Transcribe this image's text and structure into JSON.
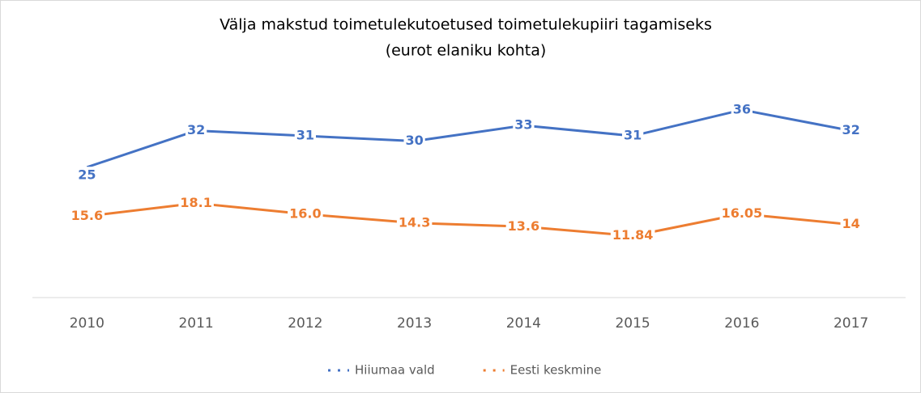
{
  "chart_data": {
    "type": "line",
    "title": "Välja makstud toimetulekutoetused toimetulekupiiri tagamiseks",
    "subtitle": "(eurot elaniku kohta)",
    "categories": [
      "2010",
      "2011",
      "2012",
      "2013",
      "2014",
      "2015",
      "2016",
      "2017"
    ],
    "series": [
      {
        "name": "Hiiumaa vald",
        "color": "#4472c4",
        "values": [
          25,
          32,
          31,
          30,
          33,
          31,
          36,
          32
        ]
      },
      {
        "name": "Eesti keskmine",
        "color": "#ed7d31",
        "values": [
          15.6,
          18.1,
          16.0,
          14.3,
          13.6,
          11.84,
          16.05,
          14
        ],
        "value_labels": [
          "15.6",
          "18.1",
          "16.0",
          "14.3",
          "13.6",
          "11.84",
          "16.05",
          "14"
        ]
      }
    ],
    "ylim": [
      0,
      40
    ],
    "legend": "bottom"
  }
}
